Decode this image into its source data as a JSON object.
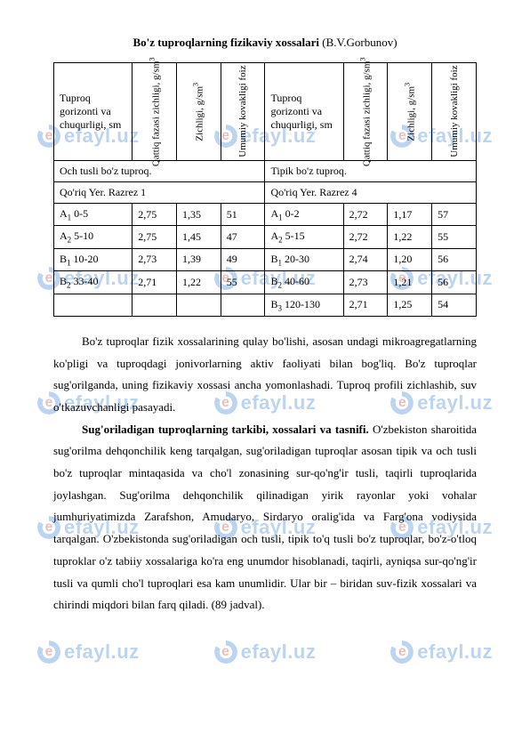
{
  "title_bold": "Bo'z tuproqlarning fizikaviy xossalari",
  "title_tail": " (B.V.Gorbunov)",
  "columns": {
    "left_wide": "Tuproq gorizonti va chuqurligi, sm",
    "right_wide": "Tuproq gorizonti va chuqurligi, sm",
    "v1": "Qattiq fazasi zichligi, g/sm",
    "v2": "Zichligi, g/sm",
    "v3": "Umumiy kovakligi foiz",
    "sup3": "3"
  },
  "section_left": "Och tusli bo'z tuproq.",
  "section_right": "Tipik bo'z tuproq.",
  "sub_left": "Qo'riq Yer. Razrez 1",
  "sub_right": "Qo'riq Yer. Razrez 4",
  "rows_left": [
    {
      "h": "A",
      "s": "1",
      "d": " 0-5",
      "c1": "2,75",
      "c2": "1,35",
      "c3": "51"
    },
    {
      "h": "A",
      "s": "2",
      "d": " 5-10",
      "c1": "2,75",
      "c2": "1,45",
      "c3": "47"
    },
    {
      "h": "B",
      "s": "1",
      "d": " 10-20",
      "c1": "2,73",
      "c2": "1,39",
      "c3": "49"
    },
    {
      "h": "B",
      "s": "2",
      "d": " 33-40",
      "c1": "2,71",
      "c2": "1,22",
      "c3": "55"
    },
    {
      "h": "",
      "s": "",
      "d": "",
      "c1": "",
      "c2": "",
      "c3": ""
    }
  ],
  "rows_right": [
    {
      "h": "A",
      "s": "1",
      "d": " 0-2",
      "c1": "2,72",
      "c2": "1,17",
      "c3": "57"
    },
    {
      "h": "A",
      "s": "2",
      "d": " 5-15",
      "c1": "2,72",
      "c2": "1,22",
      "c3": "55"
    },
    {
      "h": "B",
      "s": "1",
      "d": " 20-30",
      "c1": "2,74",
      "c2": "1,20",
      "c3": "56"
    },
    {
      "h": "B",
      "s": "2",
      "d": " 40-60",
      "c1": "2,73",
      "c2": "1,21",
      "c3": "56"
    },
    {
      "h": "B",
      "s": "3",
      "d": " 120-130",
      "c1": "2,71",
      "c2": "1,25",
      "c3": "54"
    }
  ],
  "para1": "Bo'z tuproqlar fizik xossalarining qulay bo'lishi, asosan undagi mikroagregatlarning ko'pligi va tuproqdagi jonivorlarning aktiv faoliyati bilan bog'liq. Bo'z tuproqlar sug'orilganda, uning  fizikaviy xossasi ancha yomonlashadi. Tuproq profili zichlashib, suv o'tkazuvchanligi pasayadi.",
  "para2_bold": "Sug'oriladigan tuproqlarning tarkibi, xossalari va tasnifi.",
  "para2_rest": " O'zbekiston sharoitida sug'orilma dehqonchilik keng tarqalgan, sug'oriladigan tuproqlar asosan tipik va och tusli bo'z tuproqlar mintaqasida va cho'l zonasining sur-qo'ng'ir tusli, taqirli tuproqlarida joylashgan. Sug'orilma dehqonchilik qilinadigan yirik rayonlar yoki vohalar jumhuriyatimizda Zarafshon, Amudaryo, Sirdaryo oralig'ida va Farg'ona vodiysida tarqalgan. O'zbekistonda sug'oriladigan och tusli, tipik to'q tusli bo'z tuproqlar, bo'z-o'tloq tuproklar o'z tabiiy xossalariga ko'ra eng unumdor hisoblanadi, taqirli, ayniqsa sur-qo'ng'ir tusli va qumli cho'l tuproqlari esa kam unumlidir. Ular bir – biridan suv-fizik xossalari va chirindi miqdori bilan farq qiladi. (89 jadval).",
  "watermark_text": "efayl.uz",
  "watermark_q": "e",
  "colors": {
    "wm_blue": "#1468c7",
    "wm_red": "#b11f1f"
  },
  "col_widths": [
    "78px",
    "42px",
    "42px",
    "42px",
    "78px",
    "42px",
    "42px",
    "42px"
  ]
}
